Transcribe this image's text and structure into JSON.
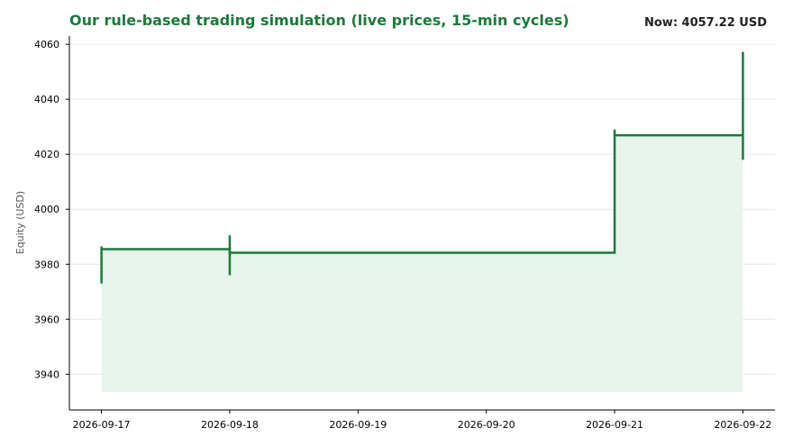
{
  "colors": {
    "accent": "#1a7a3a",
    "fill": "#e8f3ec",
    "grid": "#e6e6e6",
    "axis": "#000000",
    "now_text": "#222222"
  },
  "header": {
    "title": "Our rule-based trading simulation (live prices, 15-min cycles)",
    "now_label": "Now: 4057.22 USD"
  },
  "chart_data": {
    "type": "line",
    "step": "post",
    "fill_area": true,
    "title": "Our rule-based trading simulation (live prices, 15-min cycles)",
    "xlabel": "",
    "ylabel": "Equity (USD)",
    "grid": "horizontal",
    "xlim": [
      "2026-09-16T18:00",
      "2026-09-22T06:00"
    ],
    "ylim": [
      3927,
      4063
    ],
    "x_ticks": [
      "2026-09-17",
      "2026-09-18",
      "2026-09-19",
      "2026-09-20",
      "2026-09-21",
      "2026-09-22"
    ],
    "y_ticks": [
      3940,
      3960,
      3980,
      4000,
      4020,
      4040,
      4060
    ],
    "series": [
      {
        "x": [
          "2026-09-17",
          "2026-09-18",
          "2026-09-21",
          "2026-09-22"
        ],
        "values": [
          3985.5,
          3984.2,
          4026.9,
          4026.9
        ]
      }
    ],
    "ranges": [
      {
        "x": "2026-09-17",
        "low": 3973,
        "high": 3986.5
      },
      {
        "x": "2026-09-18",
        "low": 3976,
        "high": 3990.5
      },
      {
        "x": "2026-09-21",
        "low": 4026.9,
        "high": 4029
      },
      {
        "x": "2026-09-22",
        "low": 4018,
        "high": 4057.22
      }
    ],
    "fill_baseline": 3933.5
  }
}
